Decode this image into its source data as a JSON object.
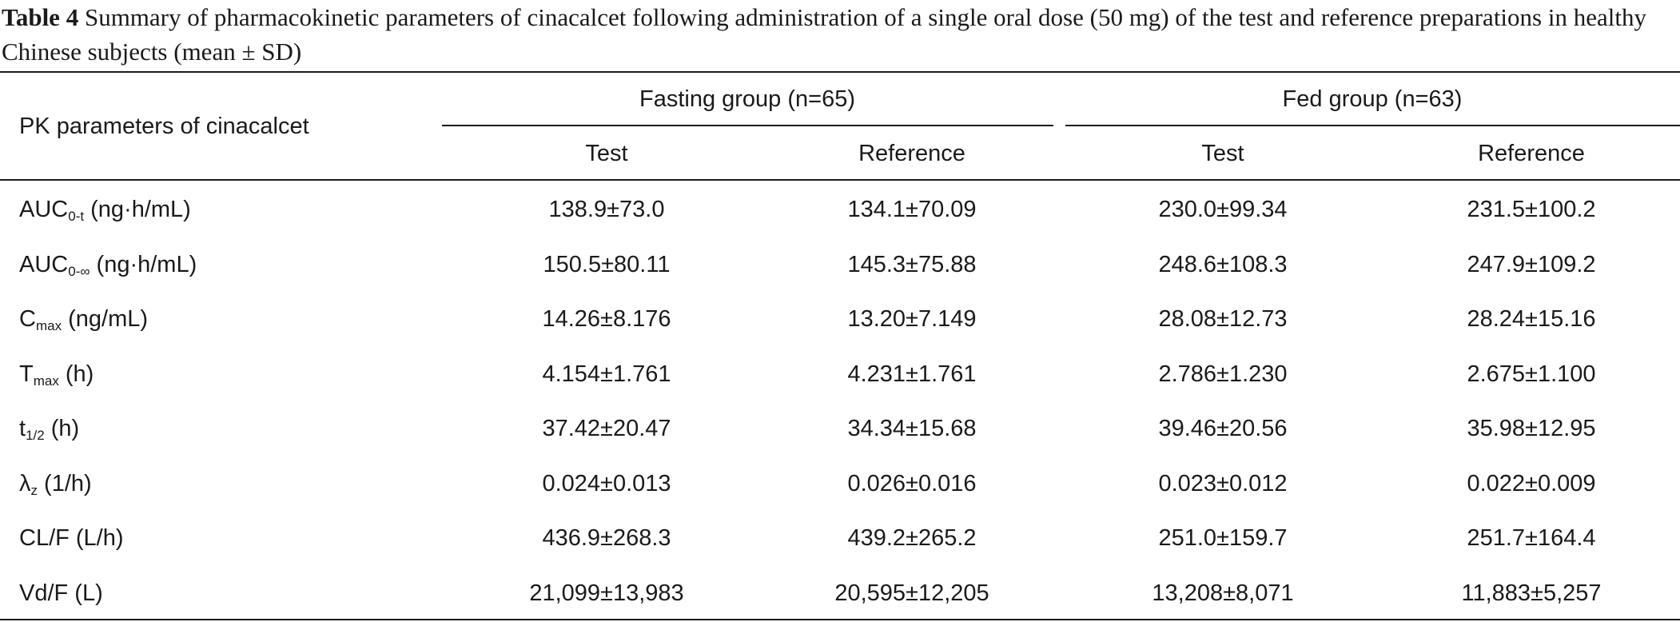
{
  "caption": {
    "label": "Table 4",
    "text": " Summary of pharmacokinetic parameters of cinacalcet following administration of a single oral dose (50 mg) of the test and reference preparations in healthy Chinese subjects (mean ± SD)"
  },
  "header": {
    "param_col": "PK parameters of cinacalcet",
    "groups": [
      {
        "label": "Fasting group (n=65)"
      },
      {
        "label": "Fed group (n=63)"
      }
    ],
    "subcols": [
      "Test",
      "Reference",
      "Test",
      "Reference"
    ]
  },
  "rows": [
    {
      "main": "AUC",
      "sub": "0-t",
      "unit": " (ng·h/mL)",
      "values": [
        "138.9±73.0",
        "134.1±70.09",
        "230.0±99.34",
        "231.5±100.2"
      ]
    },
    {
      "main": "AUC",
      "sub": "0-∞",
      "unit": " (ng·h/mL)",
      "values": [
        "150.5±80.11",
        "145.3±75.88",
        "248.6±108.3",
        "247.9±109.2"
      ]
    },
    {
      "main": "C",
      "sub": "max",
      "unit": " (ng/mL)",
      "values": [
        "14.26±8.176",
        "13.20±7.149",
        "28.08±12.73",
        "28.24±15.16"
      ]
    },
    {
      "main": "T",
      "sub": "max",
      "unit": " (h)",
      "values": [
        "4.154±1.761",
        "4.231±1.761",
        "2.786±1.230",
        "2.675±1.100"
      ]
    },
    {
      "main": "t",
      "sub": "1/2",
      "unit": " (h)",
      "values": [
        "37.42±20.47",
        "34.34±15.68",
        "39.46±20.56",
        "35.98±12.95"
      ]
    },
    {
      "main": "λ",
      "sub": "z",
      "unit": " (1/h)",
      "values": [
        "0.024±0.013",
        "0.026±0.016",
        "0.023±0.012",
        "0.022±0.009"
      ]
    },
    {
      "main": "CL/F (L/h)",
      "sub": "",
      "unit": "",
      "values": [
        "436.9±268.3",
        "439.2±265.2",
        "251.0±159.7",
        "251.7±164.4"
      ]
    },
    {
      "main": "Vd/F (L)",
      "sub": "",
      "unit": "",
      "values": [
        "21,099±13,983",
        "20,595±12,205",
        "13,208±8,071",
        "11,883±5,257"
      ]
    }
  ]
}
